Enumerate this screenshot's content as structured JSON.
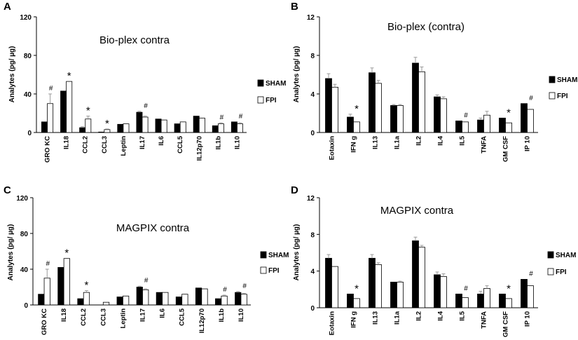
{
  "chart_data": [
    {
      "panel_label": "A",
      "type": "bar",
      "title": "Bio-plex contra",
      "ylabel": "Analytes (pg/ µg)",
      "xlabel": "",
      "ylim": [
        0,
        120
      ],
      "yticks": [
        0,
        40,
        80,
        120
      ],
      "categories": [
        "GRO KC",
        "IL18",
        "CCL2",
        "CCL3",
        "Leptin",
        "IL17",
        "IL6",
        "CCL5",
        "IL12p70",
        "IL1b",
        "IL10"
      ],
      "series": [
        {
          "name": "SHAM",
          "color": "#000000",
          "values": [
            11,
            43,
            5,
            0.5,
            8.5,
            21,
            14,
            9,
            17,
            7,
            11
          ],
          "errors": [
            0,
            0,
            1,
            0,
            0,
            1,
            0,
            0,
            0,
            0,
            0
          ]
        },
        {
          "name": "FPI",
          "color": "#ffffff",
          "values": [
            30,
            53,
            14,
            3,
            9,
            16,
            13,
            11,
            15,
            9,
            9
          ],
          "errors": [
            10,
            0,
            3,
            0.6,
            0,
            1,
            0,
            0,
            0,
            1,
            1
          ]
        }
      ],
      "annotations": [
        "#",
        "*",
        "*",
        "*",
        "",
        "#",
        "",
        "",
        "",
        "#",
        "#"
      ],
      "legend": {
        "items": [
          "SHAM",
          "FPI"
        ],
        "placement": "right"
      }
    },
    {
      "panel_label": "B",
      "type": "bar",
      "title": "Bio-plex (contra)",
      "ylabel": "Analytes (pg/ µg)",
      "xlabel": "",
      "ylim": [
        0,
        12
      ],
      "yticks": [
        0,
        4,
        8,
        12
      ],
      "categories": [
        "Eotaxin",
        "IFN g",
        "IL13",
        "IL1a",
        "IL2",
        "IL4",
        "IL5",
        "TNFA",
        "GM CSF",
        "IP 10"
      ],
      "series": [
        {
          "name": "SHAM",
          "color": "#000000",
          "values": [
            5.6,
            1.6,
            6.2,
            2.8,
            7.2,
            3.7,
            1.2,
            1.3,
            1.5,
            3.0
          ],
          "errors": [
            0.5,
            0.3,
            0.5,
            0.1,
            0.6,
            0.2,
            0,
            0.2,
            0,
            0
          ]
        },
        {
          "name": "FPI",
          "color": "#ffffff",
          "values": [
            4.7,
            1.1,
            5.1,
            2.8,
            6.3,
            3.5,
            1.1,
            1.8,
            1.0,
            2.4
          ],
          "errors": [
            0.3,
            0,
            0.3,
            0.1,
            0.5,
            0.2,
            0,
            0.4,
            0,
            0
          ]
        }
      ],
      "annotations": [
        "",
        "*",
        "",
        "",
        "",
        "",
        "#",
        "",
        "*",
        "#"
      ],
      "legend": {
        "items": [
          "SHAM",
          "FPI"
        ],
        "placement": "right"
      }
    },
    {
      "panel_label": "C",
      "type": "bar",
      "title": "MAGPIX contra",
      "ylabel": "Analytes (pg/ µg)",
      "xlabel": "",
      "ylim": [
        0,
        120
      ],
      "yticks": [
        0,
        40,
        80,
        120
      ],
      "categories": [
        "GRO KC",
        "IL18",
        "CCL2",
        "CCL3",
        "Leptin",
        "IL17",
        "IL6",
        "CCL5",
        "IL12p70",
        "IL1b",
        "IL10"
      ],
      "series": [
        {
          "name": "SHAM",
          "color": "#000000",
          "values": [
            12,
            42,
            7,
            0,
            9,
            20,
            14,
            9,
            19,
            7,
            14
          ],
          "errors": [
            0,
            0,
            0,
            0,
            0,
            1,
            0,
            0,
            0,
            0,
            1
          ]
        },
        {
          "name": "FPI",
          "color": "#ffffff",
          "values": [
            30,
            52,
            14,
            3,
            10,
            17,
            14,
            12,
            18,
            10,
            12
          ],
          "errors": [
            10,
            0,
            2,
            0,
            0,
            1,
            0,
            0,
            0,
            1,
            1
          ]
        }
      ],
      "annotations": [
        "#",
        "*",
        "*",
        "",
        "",
        "#",
        "",
        "",
        "",
        "#",
        "#"
      ],
      "legend": {
        "items": [
          "SHAM",
          "FPI"
        ],
        "placement": "right"
      }
    },
    {
      "panel_label": "D",
      "type": "bar",
      "title": "MAGPIX contra",
      "ylabel": "Analytes (pg/ µg)",
      "xlabel": "",
      "ylim": [
        0,
        12
      ],
      "yticks": [
        0,
        4,
        8,
        12
      ],
      "categories": [
        "Eotaxin",
        "IFN g",
        "IL13",
        "IL1a",
        "IL2",
        "IL4",
        "IL5",
        "TNFA",
        "GM CSF",
        "IP 10"
      ],
      "series": [
        {
          "name": "SHAM",
          "color": "#000000",
          "values": [
            5.4,
            1.5,
            5.4,
            2.8,
            7.3,
            3.6,
            1.5,
            1.5,
            1.5,
            3.1
          ],
          "errors": [
            0.4,
            0,
            0.4,
            0,
            0.4,
            0.3,
            0,
            0.3,
            0,
            0
          ]
        },
        {
          "name": "FPI",
          "color": "#ffffff",
          "values": [
            4.5,
            1.0,
            4.7,
            2.8,
            6.6,
            3.4,
            1.1,
            2.1,
            1.0,
            2.4
          ],
          "errors": [
            0,
            0,
            0.2,
            0.1,
            0.2,
            0.3,
            0,
            0.3,
            0,
            0
          ]
        }
      ],
      "annotations": [
        "",
        "*",
        "",
        "",
        "",
        "",
        "#",
        "",
        "*",
        "#"
      ],
      "legend": {
        "items": [
          "SHAM",
          "FPI"
        ],
        "placement": "right"
      }
    }
  ]
}
